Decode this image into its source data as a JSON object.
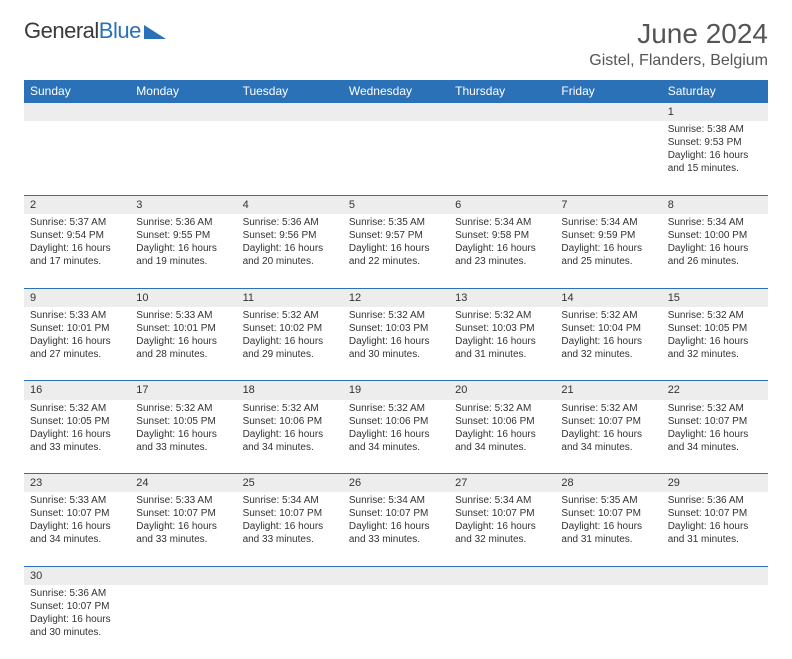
{
  "logo": {
    "text1": "General",
    "text2": "Blue",
    "triangle_color": "#2a71b8"
  },
  "title": "June 2024",
  "location": "Gistel, Flanders, Belgium",
  "header_bg": "#2a71b8",
  "header_fg": "#ffffff",
  "daynum_bg": "#ededed",
  "border_color": "#2a71b8",
  "weekdays": [
    "Sunday",
    "Monday",
    "Tuesday",
    "Wednesday",
    "Thursday",
    "Friday",
    "Saturday"
  ],
  "weeks": [
    [
      null,
      null,
      null,
      null,
      null,
      null,
      {
        "n": "1",
        "sr": "5:38 AM",
        "ss": "9:53 PM",
        "dl": "16 hours and 15 minutes."
      }
    ],
    [
      {
        "n": "2",
        "sr": "5:37 AM",
        "ss": "9:54 PM",
        "dl": "16 hours and 17 minutes."
      },
      {
        "n": "3",
        "sr": "5:36 AM",
        "ss": "9:55 PM",
        "dl": "16 hours and 19 minutes."
      },
      {
        "n": "4",
        "sr": "5:36 AM",
        "ss": "9:56 PM",
        "dl": "16 hours and 20 minutes."
      },
      {
        "n": "5",
        "sr": "5:35 AM",
        "ss": "9:57 PM",
        "dl": "16 hours and 22 minutes."
      },
      {
        "n": "6",
        "sr": "5:34 AM",
        "ss": "9:58 PM",
        "dl": "16 hours and 23 minutes."
      },
      {
        "n": "7",
        "sr": "5:34 AM",
        "ss": "9:59 PM",
        "dl": "16 hours and 25 minutes."
      },
      {
        "n": "8",
        "sr": "5:34 AM",
        "ss": "10:00 PM",
        "dl": "16 hours and 26 minutes."
      }
    ],
    [
      {
        "n": "9",
        "sr": "5:33 AM",
        "ss": "10:01 PM",
        "dl": "16 hours and 27 minutes."
      },
      {
        "n": "10",
        "sr": "5:33 AM",
        "ss": "10:01 PM",
        "dl": "16 hours and 28 minutes."
      },
      {
        "n": "11",
        "sr": "5:32 AM",
        "ss": "10:02 PM",
        "dl": "16 hours and 29 minutes."
      },
      {
        "n": "12",
        "sr": "5:32 AM",
        "ss": "10:03 PM",
        "dl": "16 hours and 30 minutes."
      },
      {
        "n": "13",
        "sr": "5:32 AM",
        "ss": "10:03 PM",
        "dl": "16 hours and 31 minutes."
      },
      {
        "n": "14",
        "sr": "5:32 AM",
        "ss": "10:04 PM",
        "dl": "16 hours and 32 minutes."
      },
      {
        "n": "15",
        "sr": "5:32 AM",
        "ss": "10:05 PM",
        "dl": "16 hours and 32 minutes."
      }
    ],
    [
      {
        "n": "16",
        "sr": "5:32 AM",
        "ss": "10:05 PM",
        "dl": "16 hours and 33 minutes."
      },
      {
        "n": "17",
        "sr": "5:32 AM",
        "ss": "10:05 PM",
        "dl": "16 hours and 33 minutes."
      },
      {
        "n": "18",
        "sr": "5:32 AM",
        "ss": "10:06 PM",
        "dl": "16 hours and 34 minutes."
      },
      {
        "n": "19",
        "sr": "5:32 AM",
        "ss": "10:06 PM",
        "dl": "16 hours and 34 minutes."
      },
      {
        "n": "20",
        "sr": "5:32 AM",
        "ss": "10:06 PM",
        "dl": "16 hours and 34 minutes."
      },
      {
        "n": "21",
        "sr": "5:32 AM",
        "ss": "10:07 PM",
        "dl": "16 hours and 34 minutes."
      },
      {
        "n": "22",
        "sr": "5:32 AM",
        "ss": "10:07 PM",
        "dl": "16 hours and 34 minutes."
      }
    ],
    [
      {
        "n": "23",
        "sr": "5:33 AM",
        "ss": "10:07 PM",
        "dl": "16 hours and 34 minutes."
      },
      {
        "n": "24",
        "sr": "5:33 AM",
        "ss": "10:07 PM",
        "dl": "16 hours and 33 minutes."
      },
      {
        "n": "25",
        "sr": "5:34 AM",
        "ss": "10:07 PM",
        "dl": "16 hours and 33 minutes."
      },
      {
        "n": "26",
        "sr": "5:34 AM",
        "ss": "10:07 PM",
        "dl": "16 hours and 33 minutes."
      },
      {
        "n": "27",
        "sr": "5:34 AM",
        "ss": "10:07 PM",
        "dl": "16 hours and 32 minutes."
      },
      {
        "n": "28",
        "sr": "5:35 AM",
        "ss": "10:07 PM",
        "dl": "16 hours and 31 minutes."
      },
      {
        "n": "29",
        "sr": "5:36 AM",
        "ss": "10:07 PM",
        "dl": "16 hours and 31 minutes."
      }
    ],
    [
      {
        "n": "30",
        "sr": "5:36 AM",
        "ss": "10:07 PM",
        "dl": "16 hours and 30 minutes."
      },
      null,
      null,
      null,
      null,
      null,
      null
    ]
  ],
  "labels": {
    "sunrise": "Sunrise: ",
    "sunset": "Sunset: ",
    "daylight": "Daylight: "
  }
}
